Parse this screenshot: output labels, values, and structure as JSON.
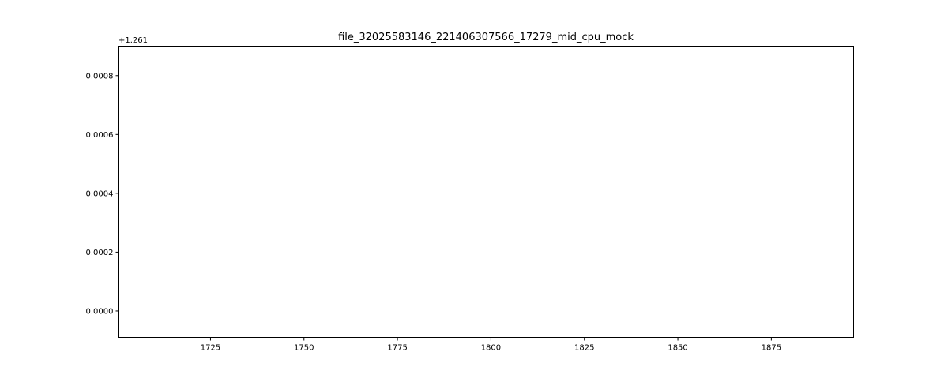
{
  "chart_data": {
    "type": "line",
    "title": "file_32025583146_221406307566_17279_mid_cpu_mock",
    "xlabel": "",
    "ylabel": "",
    "x_ticks": [
      1725,
      1750,
      1775,
      1800,
      1825,
      1850,
      1875
    ],
    "x_tick_labels": [
      "1725",
      "1750",
      "1775",
      "1800",
      "1825",
      "1850",
      "1875"
    ],
    "xlim": [
      1700.5,
      1897
    ],
    "y_offset_label": "+1.261",
    "y_ticks": [
      0.0,
      0.0002,
      0.0004,
      0.0006,
      0.0008
    ],
    "y_tick_labels": [
      "0.0000",
      "0.0002",
      "0.0004",
      "0.0006",
      "0.0008"
    ],
    "ylim": [
      -9e-05,
      0.0009
    ],
    "grid": false,
    "series": []
  }
}
